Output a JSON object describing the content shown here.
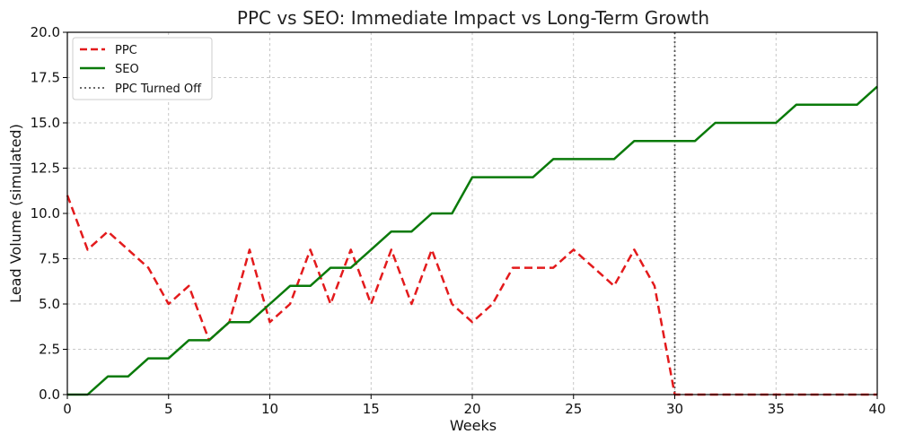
{
  "chart_data": {
    "type": "line",
    "title": "PPC vs SEO: Immediate Impact vs Long-Term Growth",
    "xlabel": "Weeks",
    "ylabel": "Lead Volume (simulated)",
    "xlim": [
      0,
      40
    ],
    "ylim": [
      0,
      20
    ],
    "xticks": [
      0,
      5,
      10,
      15,
      20,
      25,
      30,
      35,
      40
    ],
    "yticks": [
      0,
      2.5,
      5,
      7.5,
      10,
      12.5,
      15,
      17.5,
      20
    ],
    "xtick_labels": [
      "0",
      "5",
      "10",
      "15",
      "20",
      "25",
      "30",
      "35",
      "40"
    ],
    "ytick_labels": [
      "0.0",
      "2.5",
      "5.0",
      "7.5",
      "10.0",
      "12.5",
      "15.0",
      "17.5",
      "20.0"
    ],
    "grid": true,
    "legend_position": "top-left",
    "x": [
      0,
      1,
      2,
      3,
      4,
      5,
      6,
      7,
      8,
      9,
      10,
      11,
      12,
      13,
      14,
      15,
      16,
      17,
      18,
      19,
      20,
      21,
      22,
      23,
      24,
      25,
      26,
      27,
      28,
      29,
      30,
      31,
      32,
      33,
      34,
      35,
      36,
      37,
      38,
      39,
      40
    ],
    "series": [
      {
        "name": "PPC",
        "color": "#e31a1c",
        "style": "dashed",
        "values": [
          11,
          8,
          9,
          8,
          7,
          5,
          6,
          3,
          4,
          8,
          4,
          5,
          8,
          5,
          8,
          5,
          8,
          5,
          8,
          5,
          4,
          5,
          7,
          7,
          7,
          8,
          7,
          6,
          8,
          6,
          0,
          0,
          0,
          0,
          0,
          0,
          0,
          0,
          0,
          0,
          0
        ]
      },
      {
        "name": "SEO",
        "color": "#0a7a0a",
        "style": "solid",
        "values": [
          0,
          0,
          1,
          1,
          2,
          2,
          3,
          3,
          4,
          4,
          5,
          6,
          6,
          7,
          7,
          8,
          9,
          9,
          10,
          10,
          12,
          12,
          12,
          12,
          13,
          13,
          13,
          13,
          14,
          14,
          14,
          14,
          15,
          15,
          15,
          15,
          16,
          16,
          16,
          16,
          17
        ]
      }
    ],
    "vlines": [
      {
        "name": "PPC Turned Off",
        "x": 30,
        "color": "#555555",
        "style": "dotted"
      }
    ]
  }
}
